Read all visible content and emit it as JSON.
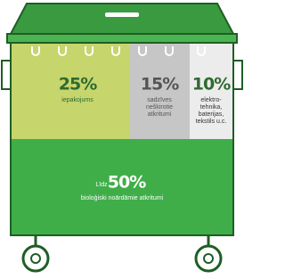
{
  "segments": [
    {
      "percent": "25%",
      "lines": [
        "iepakojums"
      ]
    },
    {
      "percent": "15%",
      "lines": [
        "sadzīves",
        "neškirotie",
        "atkritumi"
      ]
    },
    {
      "percent": "10%",
      "lines": [
        "elektro-",
        "tehnika,",
        "baterijas,",
        "tekstils u.c."
      ]
    }
  ],
  "bottom": {
    "prefix": "Līdz",
    "percent": "50%",
    "label": "bioloģiski noārdāmie atkritumi"
  }
}
